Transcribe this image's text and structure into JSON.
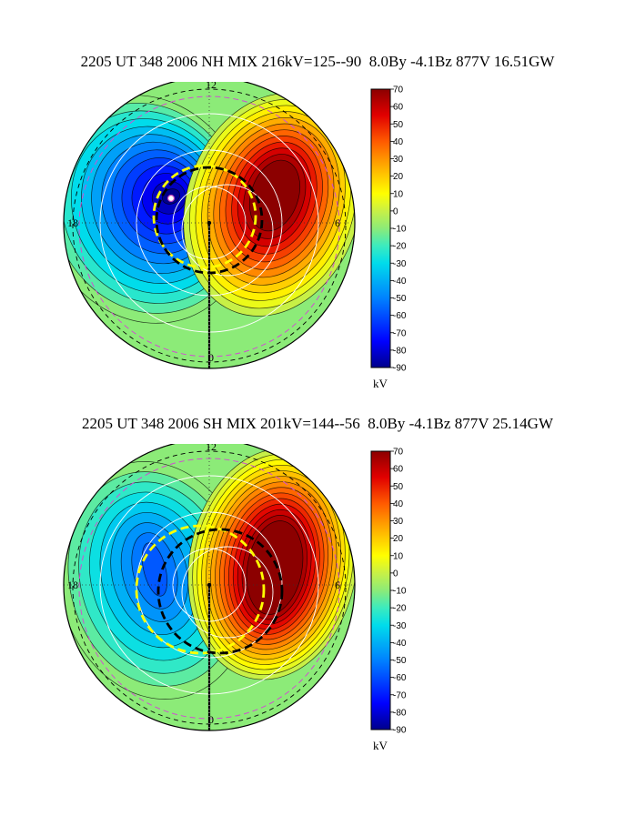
{
  "chart_data": [
    {
      "type": "heatmap",
      "subtype": "polar-potential-map",
      "hemisphere": "NH",
      "title": "2205 UT 348 2006 NH MIX 216kV=125--90  8.0By -4.1Bz 877V 16.51GW",
      "mlt_labels": {
        "noon": "12",
        "dawn": "6",
        "midnight": "0",
        "dusk": "18"
      },
      "potential_max_kv": 125,
      "potential_min_kv": -90,
      "cross_polar_cap_kv": 216,
      "imf_by_nt": 8.0,
      "imf_bz_nt": -4.1,
      "solar_wind_v": 877,
      "joule_heating_gw": 16.51,
      "colorbar": {
        "label": "kV",
        "min": -90,
        "max": 70,
        "ticks": [
          "70",
          "60",
          "50",
          "40",
          "30",
          "20",
          "10",
          "0",
          "-10",
          "-20",
          "-30",
          "-40",
          "-50",
          "-60",
          "-70",
          "-80",
          "-90"
        ]
      }
    },
    {
      "type": "heatmap",
      "subtype": "polar-potential-map",
      "hemisphere": "SH",
      "title": "2205 UT 348 2006 SH MIX 201kV=144--56  8.0By -4.1Bz 877V 25.14GW",
      "mlt_labels": {
        "noon": "12",
        "dawn": "6",
        "midnight": "0",
        "dusk": "18"
      },
      "potential_max_kv": 144,
      "potential_min_kv": -56,
      "cross_polar_cap_kv": 201,
      "imf_by_nt": 8.0,
      "imf_bz_nt": -4.1,
      "solar_wind_v": 877,
      "joule_heating_gw": 25.14,
      "colorbar": {
        "label": "kV",
        "min": -90,
        "max": 70,
        "ticks": [
          "70",
          "60",
          "50",
          "40",
          "30",
          "20",
          "10",
          "0",
          "-10",
          "-20",
          "-30",
          "-40",
          "-50",
          "-60",
          "-70",
          "-80",
          "-90"
        ]
      }
    }
  ]
}
